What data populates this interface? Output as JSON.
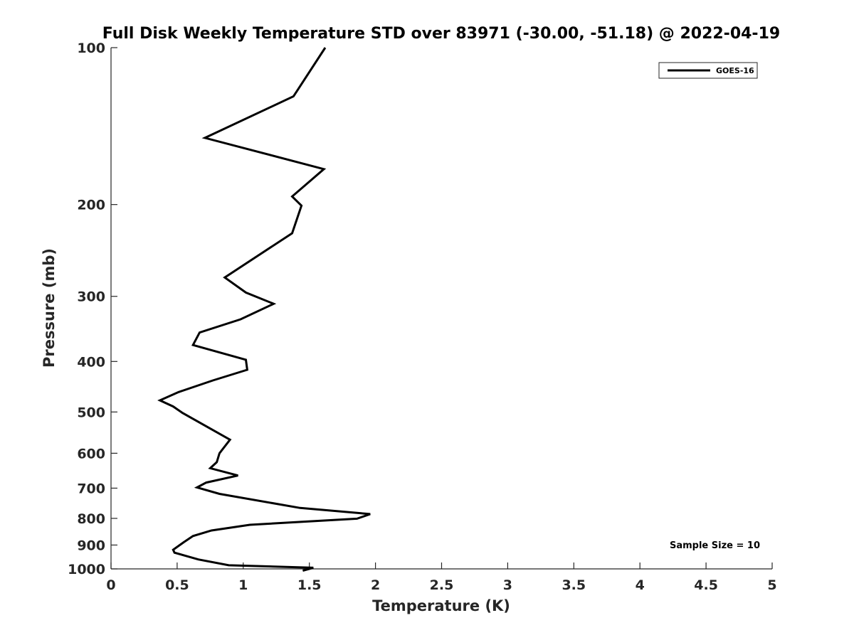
{
  "chart_data": {
    "type": "line",
    "title": "Full Disk Weekly Temperature STD over 83971 (-30.00, -51.18) @ 2022-04-19",
    "xlabel": "Temperature (K)",
    "ylabel": "Pressure (mb)",
    "xlim": [
      0,
      5
    ],
    "ylim": [
      100,
      1000
    ],
    "y_scale": "log",
    "y_reversed": true,
    "xticks": [
      0,
      0.5,
      1,
      1.5,
      2,
      2.5,
      3,
      3.5,
      4,
      4.5,
      5
    ],
    "xtick_labels": [
      "0",
      "0.5",
      "1",
      "1.5",
      "2",
      "2.5",
      "3",
      "3.5",
      "4",
      "4.5",
      "5"
    ],
    "yticks": [
      100,
      200,
      300,
      400,
      500,
      600,
      700,
      800,
      900,
      1000
    ],
    "ytick_labels": [
      "100",
      "200",
      "300",
      "400",
      "500",
      "600",
      "700",
      "800",
      "900",
      "1000"
    ],
    "grid": false,
    "legend_position": "top-right",
    "series": [
      {
        "name": "GOES-16",
        "color": "#000000",
        "x": [
          1.62,
          1.38,
          0.71,
          1.61,
          1.37,
          1.44,
          1.37,
          0.86,
          1.02,
          1.23,
          0.98,
          0.67,
          0.62,
          1.02,
          1.03,
          0.77,
          0.51,
          0.37,
          0.47,
          0.54,
          0.9,
          0.82,
          0.8,
          0.75,
          0.96,
          0.72,
          0.65,
          0.82,
          1.43,
          1.96,
          1.86,
          1.05,
          0.76,
          0.62,
          0.55,
          0.47,
          0.48,
          0.66,
          0.89,
          1.53,
          1.45
        ],
        "y": [
          100,
          124,
          149,
          171,
          193,
          201,
          227,
          276,
          295,
          310,
          332,
          352,
          372,
          397,
          415,
          435,
          458,
          475,
          488,
          502,
          565,
          600,
          624,
          641,
          662,
          683,
          698,
          718,
          764,
          785,
          801,
          823,
          844,
          865,
          889,
          919,
          931,
          959,
          984,
          995,
          1008
        ]
      }
    ],
    "annotations": [
      {
        "text": "Sample Size = 10",
        "position": "bottom-right"
      }
    ]
  }
}
